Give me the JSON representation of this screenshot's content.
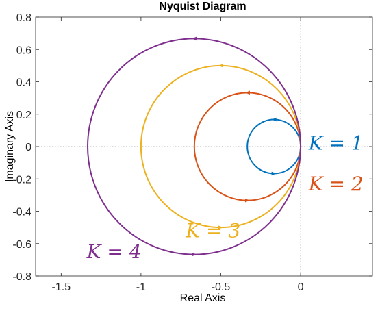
{
  "chart_data": {
    "type": "line",
    "title": "Nyquist Diagram",
    "xlabel": "Real Axis",
    "ylabel": "Imaginary Axis",
    "xlim": [
      -1.66,
      0.45
    ],
    "ylim": [
      -0.8,
      0.8
    ],
    "xticks": [
      -1.5,
      -1,
      -0.5,
      0
    ],
    "xtick_labels": [
      "-1.5",
      "-1",
      "-0.5",
      "0"
    ],
    "yticks": [
      0.8,
      0.6,
      0.4,
      0.2,
      0,
      -0.2,
      -0.4,
      -0.6,
      -0.8
    ],
    "ytick_labels": [
      "0.8",
      "0.6",
      "0.4",
      "0.2",
      "0",
      "-0.2",
      "-0.4",
      "-0.6",
      "-0.8"
    ],
    "grid": false,
    "reference_lines": "dotted lines at Real = 0 and Imaginary = 0",
    "series": [
      {
        "name": "K = 1",
        "label": "K = 1",
        "color": "#0072BD",
        "center": [
          -0.167,
          0
        ],
        "radius": 0.167
      },
      {
        "name": "K = 2",
        "label": "K = 2",
        "color": "#D95319",
        "center": [
          -0.333,
          0
        ],
        "radius": 0.333
      },
      {
        "name": "K = 3",
        "label": "K = 3",
        "color": "#EDB120",
        "center": [
          -0.5,
          0
        ],
        "radius": 0.5
      },
      {
        "name": "K = 4",
        "label": "K = 4",
        "color": "#7E2F8E",
        "center": [
          -0.667,
          0
        ],
        "radius": 0.667
      }
    ]
  }
}
